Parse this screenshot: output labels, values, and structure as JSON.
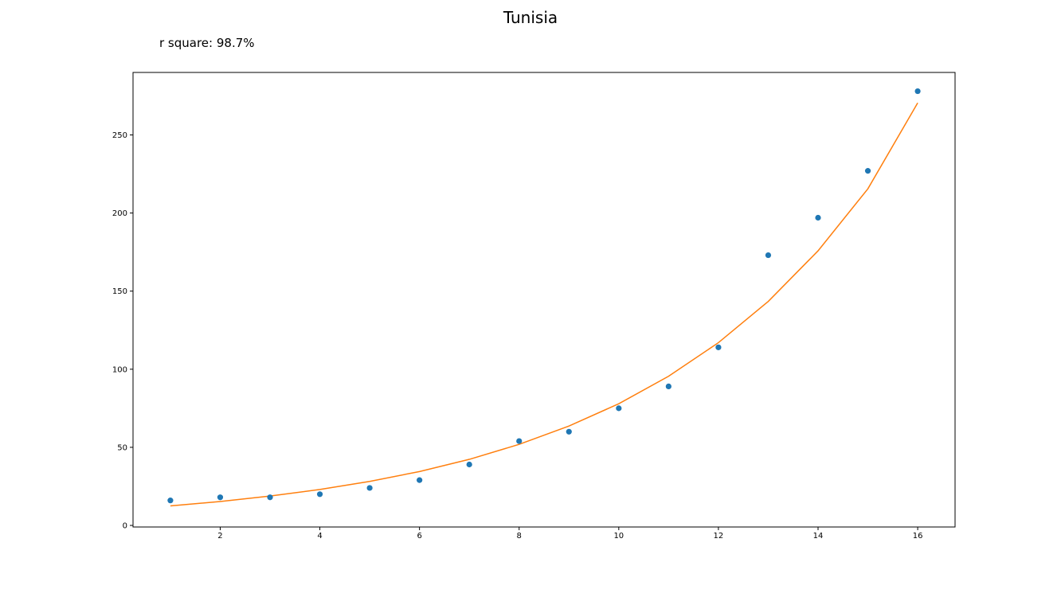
{
  "chart_data": {
    "type": "scatter",
    "title": "Tunisia",
    "annotation": "r square: 98.7%",
    "xlabel": "",
    "ylabel": "",
    "xlim": [
      0.25,
      16.75
    ],
    "ylim": [
      -1,
      290
    ],
    "xticks": [
      2,
      4,
      6,
      8,
      10,
      12,
      14,
      16
    ],
    "yticks": [
      0,
      50,
      100,
      150,
      200,
      250
    ],
    "grid": false,
    "series": [
      {
        "kind": "scatter",
        "color": "#1f77b4",
        "x": [
          1,
          2,
          3,
          4,
          5,
          6,
          7,
          8,
          9,
          10,
          11,
          12,
          13,
          14,
          15,
          16
        ],
        "y": [
          16,
          18,
          18,
          20,
          24,
          29,
          39,
          54,
          60,
          75,
          89,
          114,
          173,
          197,
          227,
          278
        ]
      },
      {
        "kind": "line",
        "color": "#ff7f0e",
        "x": [
          1,
          2,
          3,
          4,
          5,
          6,
          7,
          8,
          9,
          10,
          11,
          12,
          13,
          14,
          15,
          16
        ],
        "y": [
          12.5,
          15.3,
          18.8,
          23.0,
          28.2,
          34.5,
          42.3,
          51.9,
          63.6,
          77.9,
          95.5,
          117.0,
          143.4,
          175.8,
          215.5,
          270.5
        ]
      }
    ]
  }
}
